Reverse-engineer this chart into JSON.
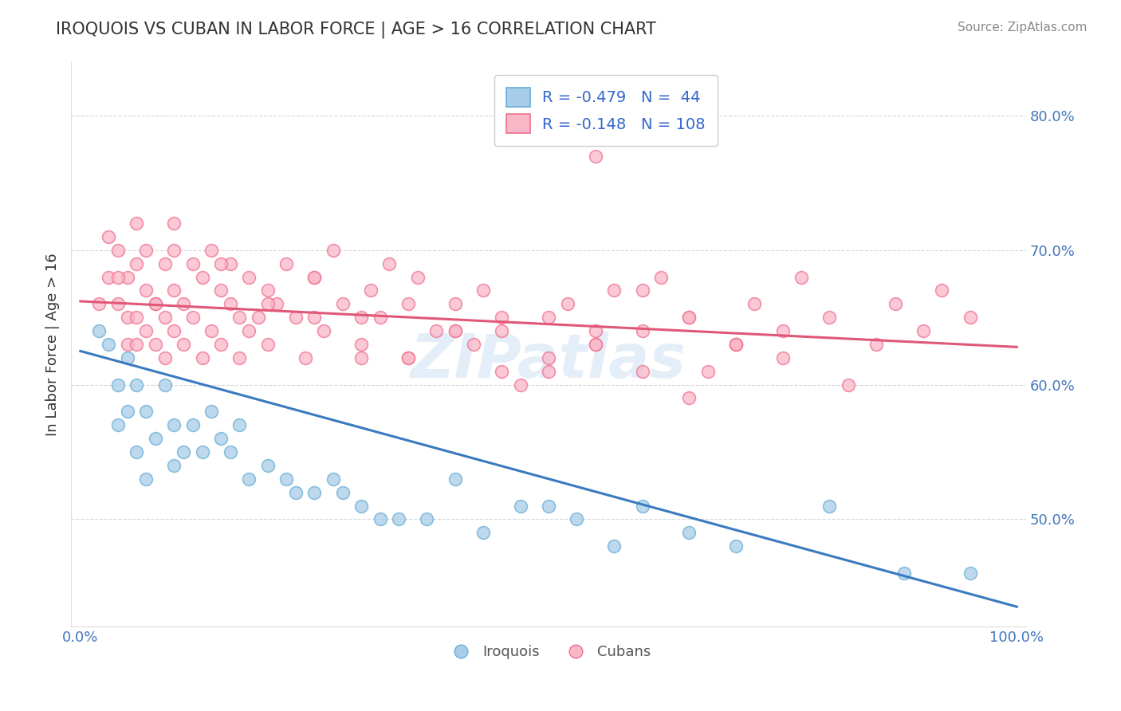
{
  "title": "IROQUOIS VS CUBAN IN LABOR FORCE | AGE > 16 CORRELATION CHART",
  "source_text": "Source: ZipAtlas.com",
  "ylabel": "In Labor Force | Age > 16",
  "xlim": [
    -0.01,
    1.01
  ],
  "ylim": [
    0.42,
    0.84
  ],
  "xtick_positions": [
    0.0,
    1.0
  ],
  "xticklabels": [
    "0.0%",
    "100.0%"
  ],
  "ytick_positions": [
    0.5,
    0.6,
    0.7,
    0.8
  ],
  "yticklabels_right": [
    "50.0%",
    "60.0%",
    "70.0%",
    "80.0%"
  ],
  "iroquois_color": "#a8cde8",
  "iroquois_edge": "#6aaed6",
  "cubans_color": "#f9b8c8",
  "cubans_edge": "#f07090",
  "line_iroquois_color": "#3a7abf",
  "line_cubans_color": "#e05878",
  "line_iroquois_x0": 0.0,
  "line_iroquois_y0": 0.625,
  "line_iroquois_x1": 1.0,
  "line_iroquois_y1": 0.435,
  "line_cubans_x0": 0.0,
  "line_cubans_y0": 0.662,
  "line_cubans_x1": 1.0,
  "line_cubans_y1": 0.628,
  "R_iroquois": -0.479,
  "N_iroquois": 44,
  "R_cubans": -0.148,
  "N_cubans": 108,
  "legend_label_iroquois": "Iroquois",
  "legend_label_cubans": "Cubans",
  "watermark": "ZIPatlas",
  "background_color": "#ffffff",
  "grid_color": "#cccccc",
  "iroquois_x": [
    0.02,
    0.03,
    0.04,
    0.04,
    0.05,
    0.05,
    0.06,
    0.06,
    0.07,
    0.07,
    0.08,
    0.09,
    0.1,
    0.1,
    0.11,
    0.12,
    0.13,
    0.14,
    0.15,
    0.16,
    0.17,
    0.18,
    0.2,
    0.22,
    0.23,
    0.25,
    0.27,
    0.28,
    0.3,
    0.32,
    0.34,
    0.37,
    0.4,
    0.43,
    0.47,
    0.5,
    0.53,
    0.57,
    0.6,
    0.65,
    0.7,
    0.8,
    0.88,
    0.95
  ],
  "iroquois_y": [
    0.64,
    0.63,
    0.6,
    0.57,
    0.62,
    0.58,
    0.6,
    0.55,
    0.58,
    0.53,
    0.56,
    0.6,
    0.57,
    0.54,
    0.55,
    0.57,
    0.55,
    0.58,
    0.56,
    0.55,
    0.57,
    0.53,
    0.54,
    0.53,
    0.52,
    0.52,
    0.53,
    0.52,
    0.51,
    0.5,
    0.5,
    0.5,
    0.53,
    0.49,
    0.51,
    0.51,
    0.5,
    0.48,
    0.51,
    0.49,
    0.48,
    0.51,
    0.46,
    0.46
  ],
  "cubans_x": [
    0.02,
    0.03,
    0.03,
    0.04,
    0.04,
    0.05,
    0.05,
    0.05,
    0.06,
    0.06,
    0.06,
    0.07,
    0.07,
    0.07,
    0.08,
    0.08,
    0.09,
    0.09,
    0.09,
    0.1,
    0.1,
    0.1,
    0.11,
    0.11,
    0.12,
    0.12,
    0.13,
    0.13,
    0.14,
    0.14,
    0.15,
    0.15,
    0.16,
    0.16,
    0.17,
    0.17,
    0.18,
    0.18,
    0.19,
    0.2,
    0.2,
    0.21,
    0.22,
    0.23,
    0.24,
    0.25,
    0.26,
    0.27,
    0.28,
    0.3,
    0.31,
    0.32,
    0.33,
    0.35,
    0.36,
    0.38,
    0.4,
    0.42,
    0.43,
    0.45,
    0.47,
    0.5,
    0.52,
    0.55,
    0.57,
    0.6,
    0.62,
    0.65,
    0.67,
    0.7,
    0.72,
    0.75,
    0.77,
    0.8,
    0.82,
    0.85,
    0.87,
    0.9,
    0.92,
    0.95,
    0.4,
    0.25,
    0.3,
    0.35,
    0.2,
    0.15,
    0.1,
    0.08,
    0.06,
    0.04,
    0.55,
    0.6,
    0.45,
    0.5,
    0.65,
    0.7,
    0.55,
    0.25,
    0.3,
    0.35,
    0.4,
    0.45,
    0.5,
    0.55,
    0.6,
    0.65,
    0.7,
    0.75
  ],
  "cubans_y": [
    0.66,
    0.71,
    0.68,
    0.7,
    0.66,
    0.68,
    0.65,
    0.63,
    0.69,
    0.65,
    0.72,
    0.67,
    0.64,
    0.7,
    0.66,
    0.63,
    0.65,
    0.69,
    0.62,
    0.64,
    0.7,
    0.67,
    0.63,
    0.66,
    0.69,
    0.65,
    0.62,
    0.68,
    0.64,
    0.7,
    0.67,
    0.63,
    0.66,
    0.69,
    0.65,
    0.62,
    0.64,
    0.68,
    0.65,
    0.67,
    0.63,
    0.66,
    0.69,
    0.65,
    0.62,
    0.68,
    0.64,
    0.7,
    0.66,
    0.63,
    0.67,
    0.65,
    0.69,
    0.62,
    0.68,
    0.64,
    0.66,
    0.63,
    0.67,
    0.65,
    0.6,
    0.62,
    0.66,
    0.63,
    0.67,
    0.64,
    0.68,
    0.65,
    0.61,
    0.63,
    0.66,
    0.64,
    0.68,
    0.65,
    0.6,
    0.63,
    0.66,
    0.64,
    0.67,
    0.65,
    0.64,
    0.68,
    0.65,
    0.62,
    0.66,
    0.69,
    0.72,
    0.66,
    0.63,
    0.68,
    0.63,
    0.67,
    0.64,
    0.61,
    0.59,
    0.63,
    0.77,
    0.65,
    0.62,
    0.66,
    0.64,
    0.61,
    0.65,
    0.64,
    0.61,
    0.65,
    0.63,
    0.62
  ]
}
